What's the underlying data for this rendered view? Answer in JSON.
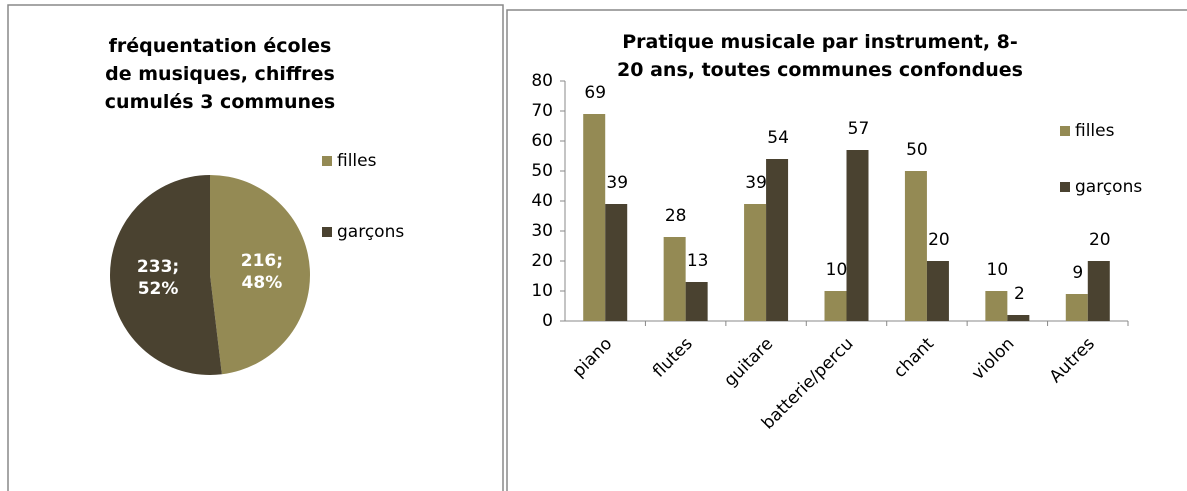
{
  "chart_data": [
    {
      "type": "pie",
      "title": "fréquentation écoles de musiques, chiffres cumulés 3 communes",
      "categories": [
        "filles",
        "garçons"
      ],
      "values": [
        216,
        233
      ],
      "value_labels": [
        "216; 48%",
        "233; 52%"
      ],
      "colors": [
        "#948a54",
        "#4a4230"
      ],
      "legend": "right"
    },
    {
      "type": "bar",
      "title": "Pratique musicale par instrument, 8-20 ans, toutes communes confondues",
      "categories": [
        "piano",
        "flutes",
        "guitare",
        "batterie/percu",
        "chant",
        "violon",
        "Autres"
      ],
      "series": [
        {
          "name": "filles",
          "color": "#948a54",
          "values": [
            69,
            28,
            39,
            10,
            50,
            10,
            9
          ]
        },
        {
          "name": "garçons",
          "color": "#4a4230",
          "values": [
            39,
            13,
            54,
            57,
            20,
            2,
            20
          ]
        }
      ],
      "ylim": [
        0,
        80
      ],
      "yticks": [
        0,
        10,
        20,
        30,
        40,
        50,
        60,
        70,
        80
      ],
      "grid": false,
      "legend": "right"
    }
  ]
}
